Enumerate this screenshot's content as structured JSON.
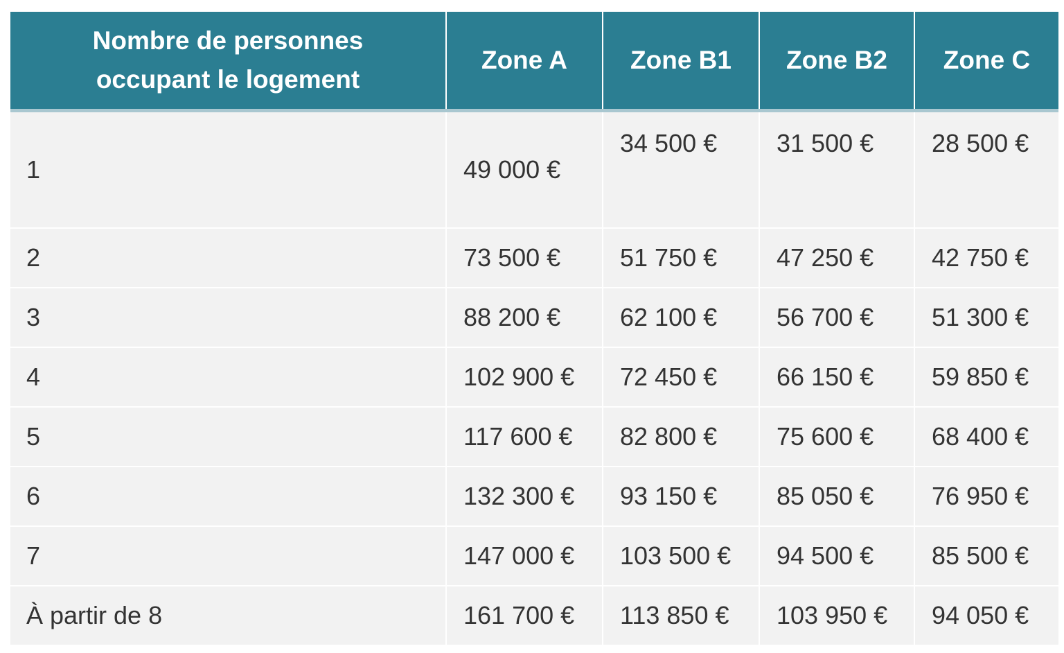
{
  "table": {
    "header": [
      "Nombre de personnes occupant le logement",
      "Zone A",
      "Zone B1",
      "Zone B2",
      "Zone C"
    ],
    "rows": [
      [
        "1",
        "49 000 €",
        "34 500 €",
        "31 500 €",
        "28 500 €"
      ],
      [
        "2",
        "73 500 €",
        "51 750 €",
        "47 250 €",
        "42 750 €"
      ],
      [
        "3",
        "88 200 €",
        "62 100 €",
        "56 700 €",
        "51 300 €"
      ],
      [
        "4",
        "102 900 €",
        "72 450 €",
        "66 150 €",
        "59 850 €"
      ],
      [
        "5",
        "117 600 €",
        "82 800 €",
        "75 600 €",
        "68 400 €"
      ],
      [
        "6",
        "132 300 €",
        "93 150 €",
        "85 050 €",
        "76 950 €"
      ],
      [
        "7",
        "147 000 €",
        "103 500 €",
        "94 500 €",
        "85 500 €"
      ],
      [
        "À partir de 8",
        "161 700 €",
        "113 850 €",
        "103 950 €",
        "94 050 €"
      ]
    ]
  }
}
